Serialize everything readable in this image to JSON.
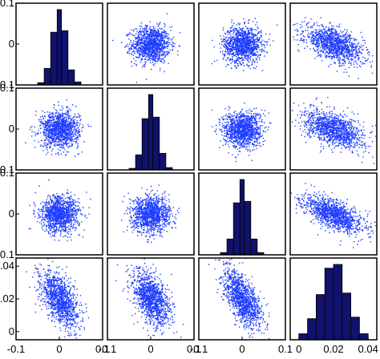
{
  "chart_data": {
    "type": "scatter-matrix",
    "title": "",
    "grid": false,
    "dimension": 4,
    "colors": {
      "scatter": "#1f3dff",
      "histogram_fill": "#10126b",
      "histogram_edge": "#000000",
      "frame": "#000000"
    },
    "variables": [
      {
        "range": [
          -0.1,
          0.1
        ],
        "tick_values": [
          -0.1,
          0,
          0.1
        ],
        "tick_labels": [
          "-0.1",
          "0",
          "0.1"
        ],
        "std": 0.022
      },
      {
        "range": [
          -0.1,
          0.1
        ],
        "tick_values": [
          -0.1,
          0,
          0.1
        ],
        "tick_labels": [
          "-0.1",
          "0",
          "0.1"
        ],
        "std": 0.022
      },
      {
        "range": [
          -0.1,
          0.1
        ],
        "tick_values": [
          -0.1,
          0,
          0.1
        ],
        "tick_labels": [
          "-0.1",
          "0",
          "0.1"
        ],
        "std": 0.022
      },
      {
        "range": [
          -0.005,
          0.045
        ],
        "tick_values": [
          0,
          0.02,
          0.04
        ],
        "tick_labels": [
          "0",
          "0.02",
          "0.04"
        ],
        "std": 0.0085,
        "mean": 0.02
      }
    ],
    "correlations": [
      [
        1.0,
        0.0,
        0.0,
        -0.55
      ],
      [
        0.0,
        1.0,
        0.0,
        -0.45
      ],
      [
        0.0,
        0.0,
        1.0,
        -0.62
      ],
      [
        -0.55,
        -0.45,
        -0.62,
        1.0
      ]
    ],
    "histograms": [
      {
        "bin_edges": [
          -0.05,
          -0.035,
          -0.02,
          -0.005,
          0.005,
          0.02,
          0.035,
          0.05
        ],
        "counts": [
          3,
          22,
          70,
          100,
          72,
          20,
          4
        ]
      },
      {
        "bin_edges": [
          -0.05,
          -0.035,
          -0.02,
          -0.005,
          0.005,
          0.02,
          0.035,
          0.05
        ],
        "counts": [
          2,
          20,
          68,
          100,
          70,
          22,
          3
        ]
      },
      {
        "bin_edges": [
          -0.05,
          -0.035,
          -0.02,
          -0.005,
          0.005,
          0.02,
          0.035,
          0.05
        ],
        "counts": [
          3,
          21,
          69,
          100,
          71,
          21,
          3
        ]
      },
      {
        "bin_edges": [
          0.0,
          0.005,
          0.01,
          0.015,
          0.02,
          0.025,
          0.03,
          0.035,
          0.04
        ],
        "counts": [
          8,
          28,
          60,
          95,
          100,
          62,
          30,
          8
        ]
      }
    ],
    "points_per_panel": 1200,
    "axes": {
      "left_labeled_rows": [
        0,
        1,
        2,
        3
      ],
      "bottom_labeled_cols": [
        0,
        1,
        2,
        3
      ]
    }
  }
}
